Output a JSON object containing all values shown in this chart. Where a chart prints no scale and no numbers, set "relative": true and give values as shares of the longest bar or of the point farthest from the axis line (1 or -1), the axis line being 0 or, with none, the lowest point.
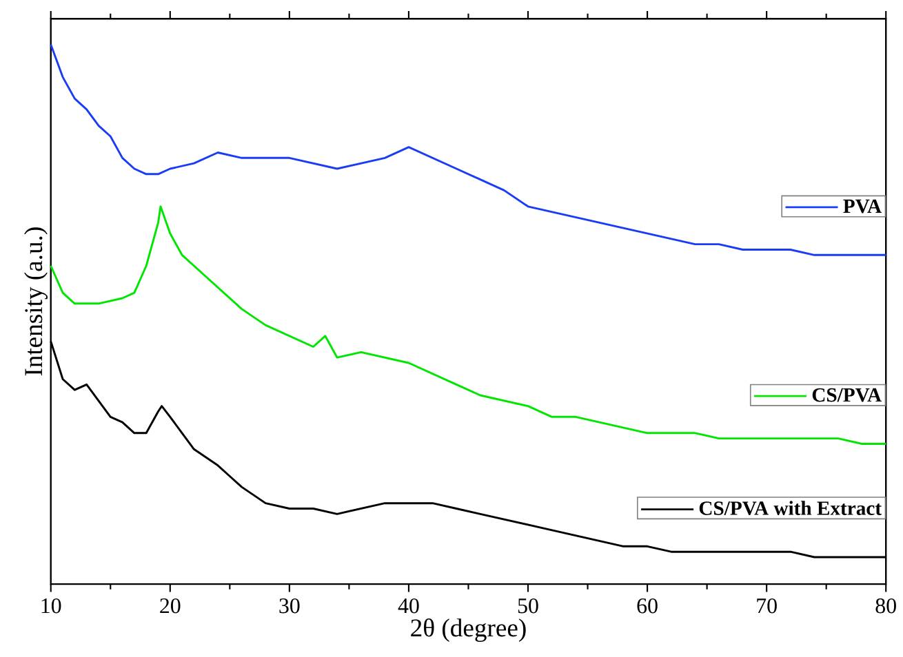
{
  "chart_data": {
    "type": "line",
    "relative": true,
    "xlabel": "2θ (degree)",
    "ylabel": "Intensity (a.u.)",
    "xlim": [
      10,
      80
    ],
    "xticks": [
      10,
      20,
      30,
      40,
      50,
      60,
      70,
      80
    ],
    "legend": "right",
    "series": [
      {
        "name": "PVA",
        "color": "#1a3cf5",
        "x": [
          10,
          11,
          12,
          13,
          14,
          15,
          16,
          17,
          18,
          19,
          20,
          22,
          24,
          26,
          28,
          30,
          32,
          34,
          36,
          38,
          40,
          42,
          44,
          46,
          48,
          50,
          52,
          54,
          56,
          58,
          60,
          62,
          64,
          66,
          68,
          70,
          72,
          74,
          76,
          78,
          80
        ],
        "values": [
          1.0,
          0.94,
          0.9,
          0.88,
          0.85,
          0.83,
          0.79,
          0.77,
          0.76,
          0.76,
          0.77,
          0.78,
          0.8,
          0.79,
          0.79,
          0.79,
          0.78,
          0.77,
          0.78,
          0.79,
          0.81,
          0.79,
          0.77,
          0.75,
          0.73,
          0.7,
          0.69,
          0.68,
          0.67,
          0.66,
          0.65,
          0.64,
          0.63,
          0.63,
          0.62,
          0.62,
          0.62,
          0.61,
          0.61,
          0.61,
          0.61
        ]
      },
      {
        "name": "CS/PVA",
        "color": "#00e600",
        "x": [
          10,
          11,
          12,
          14,
          16,
          17,
          18,
          19,
          19.2,
          20,
          21,
          22,
          24,
          26,
          28,
          30,
          32,
          33,
          34,
          36,
          38,
          40,
          42,
          44,
          46,
          48,
          50,
          52,
          54,
          56,
          58,
          60,
          62,
          64,
          66,
          68,
          70,
          72,
          74,
          76,
          78,
          80
        ],
        "values": [
          0.59,
          0.54,
          0.52,
          0.52,
          0.53,
          0.54,
          0.59,
          0.67,
          0.7,
          0.65,
          0.61,
          0.59,
          0.55,
          0.51,
          0.48,
          0.46,
          0.44,
          0.46,
          0.42,
          0.43,
          0.42,
          0.41,
          0.39,
          0.37,
          0.35,
          0.34,
          0.33,
          0.31,
          0.31,
          0.3,
          0.29,
          0.28,
          0.28,
          0.28,
          0.27,
          0.27,
          0.27,
          0.27,
          0.27,
          0.27,
          0.26,
          0.26
        ]
      },
      {
        "name": "CS/PVA with Extract",
        "color": "#000000",
        "x": [
          10,
          11,
          12,
          13,
          14,
          15,
          16,
          17,
          18,
          19,
          19.3,
          20,
          21,
          22,
          24,
          25,
          26,
          28,
          30,
          32,
          34,
          36,
          38,
          40,
          42,
          44,
          46,
          48,
          50,
          52,
          54,
          56,
          58,
          60,
          62,
          64,
          66,
          68,
          70,
          72,
          74,
          76,
          78,
          80
        ],
        "values": [
          0.45,
          0.38,
          0.36,
          0.37,
          0.34,
          0.31,
          0.3,
          0.28,
          0.28,
          0.32,
          0.33,
          0.31,
          0.28,
          0.25,
          0.22,
          0.2,
          0.18,
          0.15,
          0.14,
          0.14,
          0.13,
          0.14,
          0.15,
          0.15,
          0.15,
          0.14,
          0.13,
          0.12,
          0.11,
          0.1,
          0.09,
          0.08,
          0.07,
          0.07,
          0.06,
          0.06,
          0.06,
          0.06,
          0.06,
          0.06,
          0.05,
          0.05,
          0.05,
          0.05
        ]
      }
    ]
  }
}
